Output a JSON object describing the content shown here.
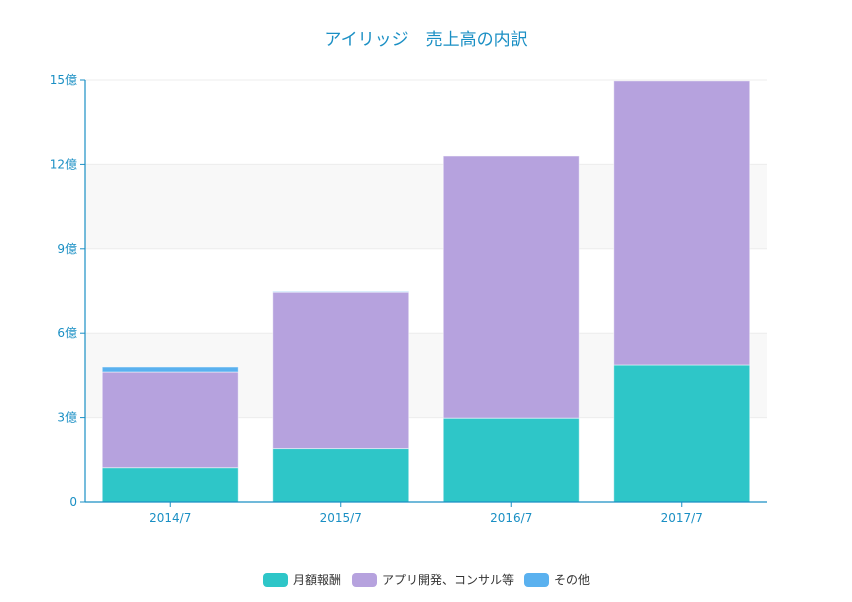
{
  "chart_data": {
    "type": "bar",
    "stacked": true,
    "title": "アイリッジ　売上高の内訳",
    "xlabel": "",
    "ylabel": "",
    "categories": [
      "2014/7",
      "2015/7",
      "2016/7",
      "2017/7"
    ],
    "series": [
      {
        "name": "月額報酬",
        "color": "#2ec6c8",
        "values": [
          1.22,
          1.9,
          2.98,
          4.87
        ]
      },
      {
        "name": "アプリ開発、コンサル等",
        "color": "#b6a2de",
        "values": [
          3.4,
          5.56,
          9.32,
          10.1
        ]
      },
      {
        "name": "その他",
        "color": "#5ab1ef",
        "values": [
          0.18,
          0.02,
          0,
          0
        ]
      }
    ],
    "ylim": [
      0,
      15
    ],
    "yticks": [
      0,
      3,
      6,
      9,
      12,
      15
    ],
    "ytick_labels": [
      "0",
      "3億",
      "6億",
      "9億",
      "12億",
      "15億"
    ],
    "grid": true,
    "legend_position": "bottom-center"
  }
}
